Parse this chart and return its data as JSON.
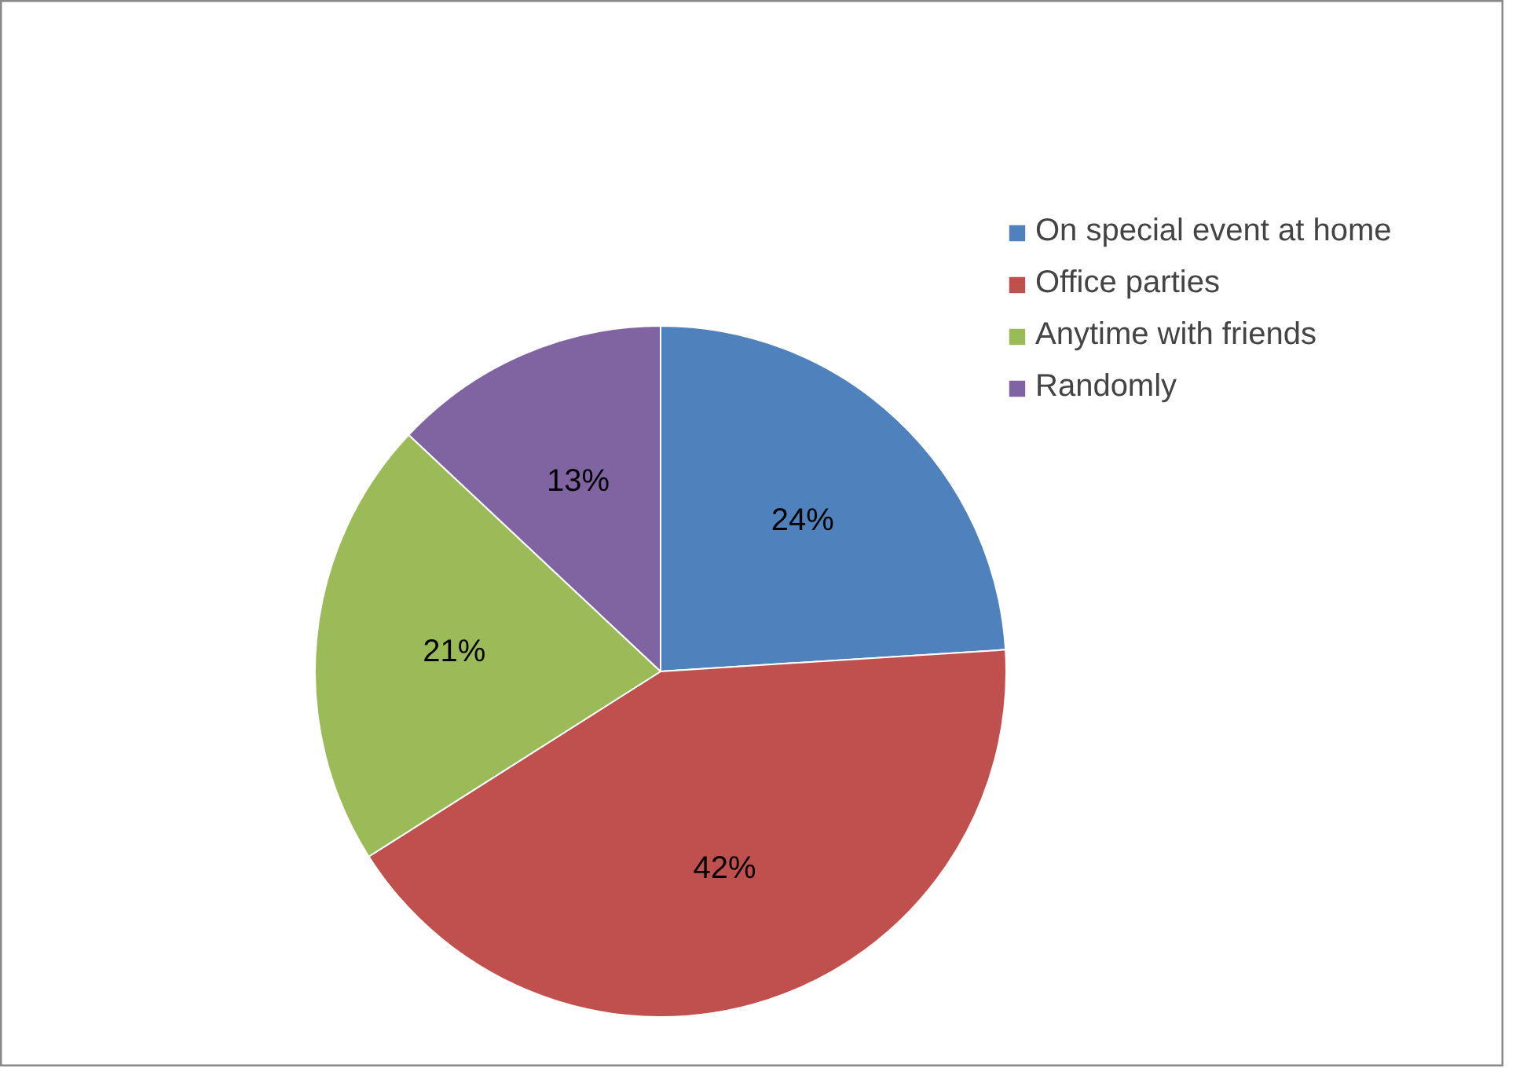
{
  "chart_data": {
    "type": "pie",
    "categories": [
      "On special event at home",
      "Office parties",
      "Anytime with friends",
      "Randomly"
    ],
    "values": [
      24,
      42,
      21,
      13
    ],
    "colors": [
      "#4f81bd",
      "#c0504d",
      "#9bbb59",
      "#8064a2"
    ],
    "value_labels": [
      "24%",
      "42%",
      "21%",
      "13%"
    ],
    "legend": "right"
  }
}
